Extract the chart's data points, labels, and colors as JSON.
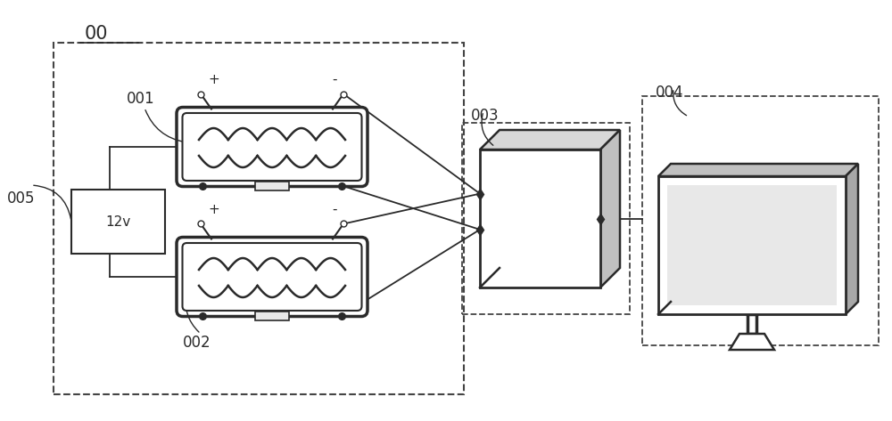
{
  "labels": {
    "system": "00",
    "motor1": "001",
    "motor2": "002",
    "daq": "003",
    "computer": "004",
    "power": "005"
  },
  "bg_color": "#ffffff",
  "line_color": "#2a2a2a",
  "font_size_label": 12,
  "figsize": [
    10.0,
    4.73
  ],
  "xlim": [
    0,
    10
  ],
  "ylim": [
    0,
    4.73
  ]
}
